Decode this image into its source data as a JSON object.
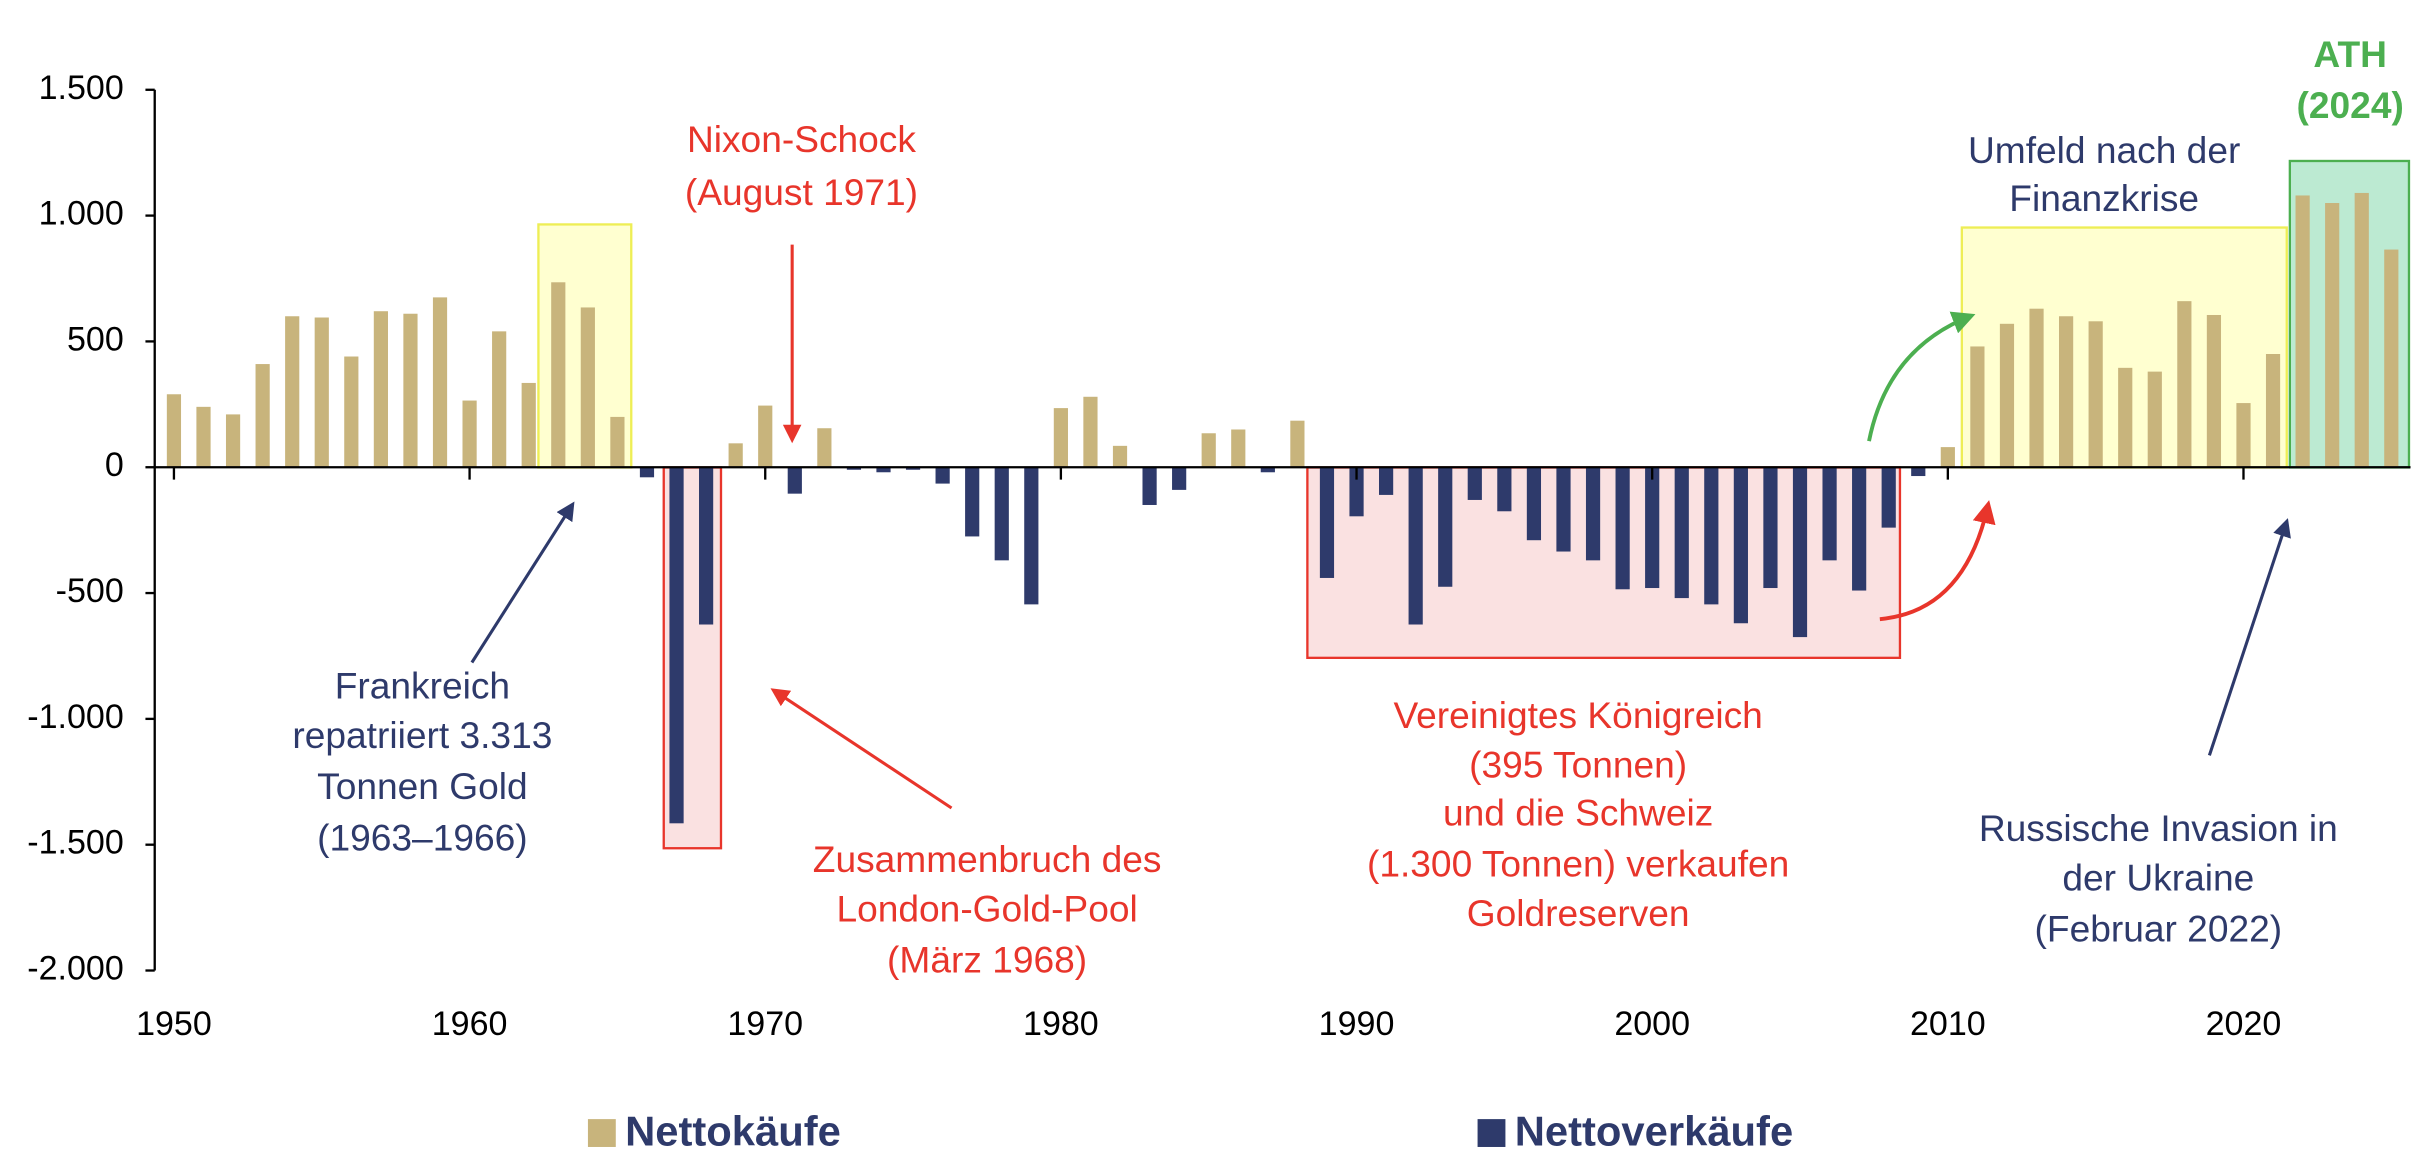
{
  "chart_data": {
    "type": "bar",
    "x": [
      1950,
      1951,
      1952,
      1953,
      1954,
      1955,
      1956,
      1957,
      1958,
      1959,
      1960,
      1961,
      1962,
      1963,
      1964,
      1965,
      1966,
      1967,
      1968,
      1969,
      1970,
      1971,
      1972,
      1973,
      1974,
      1975,
      1976,
      1977,
      1978,
      1979,
      1980,
      1981,
      1982,
      1983,
      1984,
      1985,
      1986,
      1987,
      1988,
      1989,
      1990,
      1991,
      1992,
      1993,
      1994,
      1995,
      1996,
      1997,
      1998,
      1999,
      2000,
      2001,
      2002,
      2003,
      2004,
      2005,
      2006,
      2007,
      2008,
      2009,
      2010,
      2011,
      2012,
      2013,
      2014,
      2015,
      2016,
      2017,
      2018,
      2019,
      2020,
      2021,
      2022,
      2023,
      2024,
      2025
    ],
    "series": [
      {
        "name": "Nettokäufe",
        "color": "#c8b47c",
        "values": [
          290,
          240,
          210,
          410,
          600,
          595,
          440,
          620,
          610,
          675,
          265,
          540,
          335,
          735,
          635,
          200,
          null,
          null,
          null,
          95,
          245,
          null,
          155,
          null,
          null,
          null,
          null,
          null,
          null,
          null,
          235,
          280,
          85,
          null,
          null,
          135,
          150,
          null,
          185,
          null,
          null,
          null,
          null,
          null,
          null,
          null,
          null,
          null,
          null,
          null,
          null,
          null,
          null,
          null,
          null,
          null,
          null,
          null,
          null,
          null,
          80,
          480,
          570,
          630,
          600,
          580,
          395,
          380,
          660,
          605,
          255,
          450,
          1080,
          1050,
          1090,
          865
        ]
      },
      {
        "name": "Nettoverkäufe",
        "color": "#2e3a6b",
        "values": [
          null,
          null,
          null,
          null,
          null,
          null,
          null,
          null,
          null,
          null,
          null,
          null,
          null,
          null,
          null,
          null,
          -40,
          -1415,
          -625,
          null,
          null,
          -105,
          null,
          -10,
          -20,
          -10,
          -65,
          -275,
          -370,
          -545,
          null,
          null,
          null,
          -150,
          -90,
          null,
          null,
          -20,
          null,
          -440,
          -195,
          -110,
          -625,
          -475,
          -130,
          -175,
          -290,
          -335,
          -370,
          -485,
          -480,
          -520,
          -545,
          -620,
          -480,
          -675,
          -370,
          -490,
          -240,
          -35,
          null,
          null,
          null,
          null,
          null,
          null,
          null,
          null,
          null,
          null,
          null,
          null,
          null,
          null,
          null,
          null
        ]
      }
    ],
    "xlim": [
      1949.35,
      2025.65
    ],
    "xticks": [
      1950,
      1960,
      1970,
      1980,
      1990,
      2000,
      2010,
      2020
    ],
    "ylim": [
      -2000,
      1500
    ],
    "yticks": [
      {
        "value": 1500,
        "label": "1.500"
      },
      {
        "value": 1000,
        "label": "1.000"
      },
      500,
      0,
      -500,
      {
        "value": -1000,
        "label": "-1.000"
      },
      {
        "value": -1500,
        "label": "-1.500"
      },
      {
        "value": -2000,
        "label": "-2.000"
      }
    ],
    "legend": "bottom",
    "annotations": [
      {
        "lines": [
          "Nixon-Schock",
          "(August 1971)"
        ]
      },
      {
        "lines": [
          "Frankreich",
          "repatriiert 3.313",
          "Tonnen Gold",
          "(1963–1966)"
        ]
      },
      {
        "lines": [
          "Zusammenbruch des",
          "London-Gold-Pool",
          "(März 1968)"
        ]
      },
      {
        "lines": [
          "Vereinigtes Königreich",
          "(395 Tonnen)",
          "und die Schweiz",
          "(1.300 Tonnen) verkaufen",
          "Goldreserven"
        ]
      },
      {
        "lines": [
          "Umfeld nach der",
          "Finanzkrise"
        ]
      },
      {
        "lines": [
          "ATH",
          "(2024)"
        ]
      },
      {
        "lines": [
          "Russische Invasion in",
          "der Ukraine",
          "(Februar 2022)"
        ]
      }
    ]
  }
}
